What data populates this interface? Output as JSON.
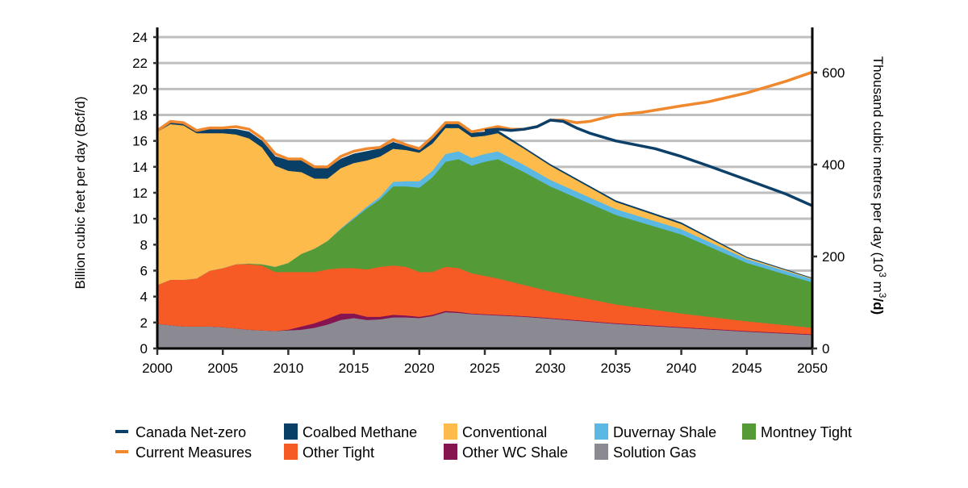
{
  "chart_data": {
    "type": "area",
    "stacked": true,
    "title": "",
    "xlabel": "",
    "ylabel": "Billion cubic feet per day (Bcf/d)",
    "y2label_main": "Thousand cubic metres per day (10",
    "y2label_sup1": "3",
    "y2label_mid": " m",
    "y2label_sup2": "3",
    "y2label_end": "/d)",
    "xlim": [
      2000,
      2050
    ],
    "ylim": [
      0,
      24
    ],
    "y2lim": [
      0,
      677
    ],
    "xticks": [
      2000,
      2005,
      2010,
      2015,
      2020,
      2025,
      2030,
      2035,
      2040,
      2045,
      2050
    ],
    "yticks": [
      0,
      2,
      4,
      6,
      8,
      10,
      12,
      14,
      16,
      18,
      20,
      22,
      24
    ],
    "y2ticks": [
      0,
      200,
      400,
      600
    ],
    "grid": "horizontal",
    "legend_placement": "bottom",
    "x": [
      2000,
      2001,
      2002,
      2003,
      2004,
      2005,
      2006,
      2007,
      2008,
      2009,
      2010,
      2011,
      2012,
      2013,
      2014,
      2015,
      2016,
      2017,
      2018,
      2019,
      2020,
      2021,
      2022,
      2023,
      2024,
      2025,
      2026,
      2028,
      2030,
      2035,
      2040,
      2045,
      2050
    ],
    "series": [
      {
        "name": "Solution Gas",
        "color": "#8b8a93",
        "values": [
          1.9,
          1.8,
          1.7,
          1.7,
          1.7,
          1.65,
          1.55,
          1.45,
          1.4,
          1.35,
          1.4,
          1.45,
          1.6,
          1.85,
          2.2,
          2.35,
          2.2,
          2.25,
          2.4,
          2.4,
          2.35,
          2.5,
          2.8,
          2.75,
          2.65,
          2.6,
          2.55,
          2.45,
          2.3,
          1.9,
          1.6,
          1.3,
          1.05
        ]
      },
      {
        "name": "Other WC Shale",
        "color": "#861450",
        "values": [
          0,
          0,
          0,
          0,
          0,
          0,
          0,
          0,
          0,
          0,
          0.05,
          0.25,
          0.35,
          0.45,
          0.5,
          0.35,
          0.25,
          0.2,
          0.2,
          0.15,
          0.1,
          0.1,
          0.1,
          0.08,
          0.05,
          0.05,
          0.05,
          0.05,
          0.05,
          0.05,
          0.05,
          0.05,
          0.05
        ]
      },
      {
        "name": "Other Tight",
        "color": "#f65a25",
        "values": [
          3.0,
          3.5,
          3.6,
          3.7,
          4.3,
          4.55,
          4.95,
          5.05,
          5.0,
          4.55,
          4.45,
          4.2,
          3.95,
          3.8,
          3.5,
          3.5,
          3.65,
          3.85,
          3.8,
          3.75,
          3.45,
          3.3,
          3.4,
          3.37,
          3.1,
          2.95,
          2.8,
          2.4,
          2.05,
          1.45,
          1.05,
          0.75,
          0.5
        ]
      },
      {
        "name": "Montney Tight",
        "color": "#549b38",
        "values": [
          0,
          0,
          0,
          0,
          0,
          0,
          0,
          0.05,
          0.1,
          0.4,
          0.7,
          1.4,
          1.8,
          2.2,
          3.0,
          3.8,
          4.7,
          5.2,
          6.1,
          6.2,
          6.5,
          7.3,
          8.1,
          8.4,
          8.3,
          8.8,
          9.2,
          8.7,
          8.1,
          6.9,
          6.1,
          4.5,
          3.5
        ]
      },
      {
        "name": "Duvernay Shale",
        "color": "#5ab8e3",
        "values": [
          0,
          0,
          0,
          0,
          0,
          0,
          0,
          0,
          0,
          0,
          0,
          0,
          0,
          0,
          0.05,
          0.1,
          0.15,
          0.2,
          0.35,
          0.4,
          0.5,
          0.5,
          0.6,
          0.6,
          0.6,
          0.6,
          0.6,
          0.55,
          0.5,
          0.45,
          0.4,
          0.3,
          0.25
        ]
      },
      {
        "name": "Conventional",
        "color": "#fdbb4c",
        "values": [
          11.8,
          12.0,
          11.9,
          11.2,
          10.6,
          10.4,
          10.0,
          9.65,
          9.0,
          7.8,
          7.1,
          6.3,
          5.4,
          4.8,
          4.65,
          4.2,
          3.55,
          3.1,
          2.55,
          2.4,
          2.2,
          2.1,
          2.0,
          1.8,
          1.6,
          1.4,
          1.4,
          1.25,
          1.1,
          0.55,
          0.4,
          0.1,
          0.05
        ]
      },
      {
        "name": "Coalbed Methane",
        "color": "#083f66",
        "values": [
          0,
          0.1,
          0.1,
          0.1,
          0.3,
          0.3,
          0.4,
          0.5,
          0.5,
          0.7,
          0.8,
          0.9,
          0.8,
          0.8,
          0.7,
          0.7,
          0.7,
          0.6,
          0.5,
          0.3,
          0.2,
          0.4,
          0.3,
          0.3,
          0.3,
          0.3,
          0.2,
          0.1,
          0.1,
          0.1,
          0.1,
          0.05,
          0.03
        ]
      }
    ],
    "lines": [
      {
        "name": "Current Measures",
        "color": "#f0892d",
        "x": [
          2000,
          2001,
          2002,
          2003,
          2004,
          2005,
          2006,
          2007,
          2008,
          2009,
          2010,
          2011,
          2012,
          2013,
          2014,
          2015,
          2016,
          2017,
          2018,
          2019,
          2020,
          2021,
          2022,
          2023,
          2024,
          2025,
          2026,
          2027,
          2028,
          2029,
          2030,
          2031,
          2032,
          2033,
          2035,
          2037,
          2040,
          2042,
          2045,
          2048,
          2050
        ],
        "values": [
          16.8,
          17.5,
          17.4,
          16.8,
          17.0,
          17.0,
          17.1,
          16.9,
          16.2,
          15.0,
          14.6,
          14.6,
          14.0,
          14.0,
          14.8,
          15.2,
          15.4,
          15.5,
          16.1,
          15.7,
          15.4,
          16.3,
          17.4,
          17.4,
          16.7,
          16.9,
          17.1,
          16.9,
          16.9,
          17.1,
          17.6,
          17.6,
          17.4,
          17.5,
          18.0,
          18.2,
          18.7,
          19.0,
          19.7,
          20.6,
          21.3
        ]
      },
      {
        "name": "Canada Net-zero",
        "color": "#0c4069",
        "x": [
          2025,
          2026,
          2027,
          2028,
          2029,
          2030,
          2031,
          2032,
          2033,
          2035,
          2038,
          2040,
          2042,
          2045,
          2048,
          2050
        ],
        "values": [
          16.8,
          16.9,
          16.8,
          16.9,
          17.1,
          17.6,
          17.5,
          17.0,
          16.6,
          16.0,
          15.4,
          14.8,
          14.1,
          13.0,
          11.9,
          11.0
        ]
      }
    ],
    "legend": {
      "row1": [
        {
          "label": "Canada Net-zero",
          "kind": "line",
          "color": "#0c4069"
        },
        {
          "label": "Coalbed Methane",
          "kind": "box",
          "color": "#083f66"
        },
        {
          "label": "Conventional",
          "kind": "box",
          "color": "#fdbb4c"
        },
        {
          "label": "Duvernay Shale",
          "kind": "box",
          "color": "#5ab8e3"
        },
        {
          "label": "Montney Tight",
          "kind": "box",
          "color": "#549b38"
        }
      ],
      "row2": [
        {
          "label": "Current Measures",
          "kind": "line",
          "color": "#f0892d"
        },
        {
          "label": "Other Tight",
          "kind": "box",
          "color": "#f65a25"
        },
        {
          "label": "Other WC Shale",
          "kind": "box",
          "color": "#861450"
        },
        {
          "label": "Solution Gas",
          "kind": "box",
          "color": "#8b8a93"
        }
      ]
    }
  }
}
